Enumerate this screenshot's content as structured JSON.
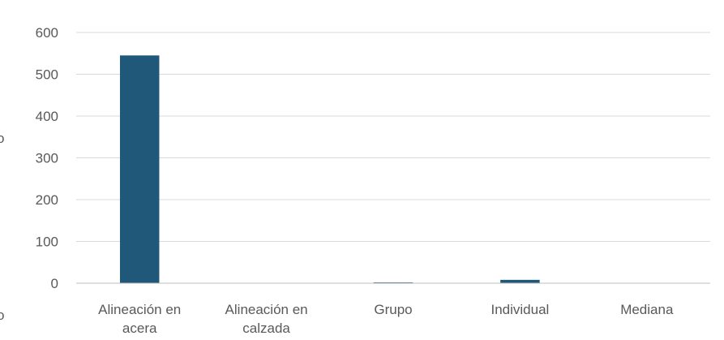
{
  "chart_data": {
    "type": "bar",
    "categories": [
      [
        "Alineación en",
        "acera"
      ],
      [
        "Alineación en",
        "calzada"
      ],
      [
        "Grupo"
      ],
      [
        "Individual"
      ],
      [
        "Mediana"
      ]
    ],
    "values": [
      545,
      0,
      1,
      8,
      0
    ],
    "ylim": [
      0,
      600
    ],
    "yticks": [
      0,
      100,
      200,
      300,
      400,
      500,
      600
    ],
    "grid": true,
    "legend": "none",
    "colors": {
      "bar": "#1f5878",
      "grid": "#d9d9d9",
      "axis": "#bfbfbf",
      "text": "#595959"
    }
  },
  "edge_marks": {
    "top": "o",
    "bottom": "o"
  }
}
